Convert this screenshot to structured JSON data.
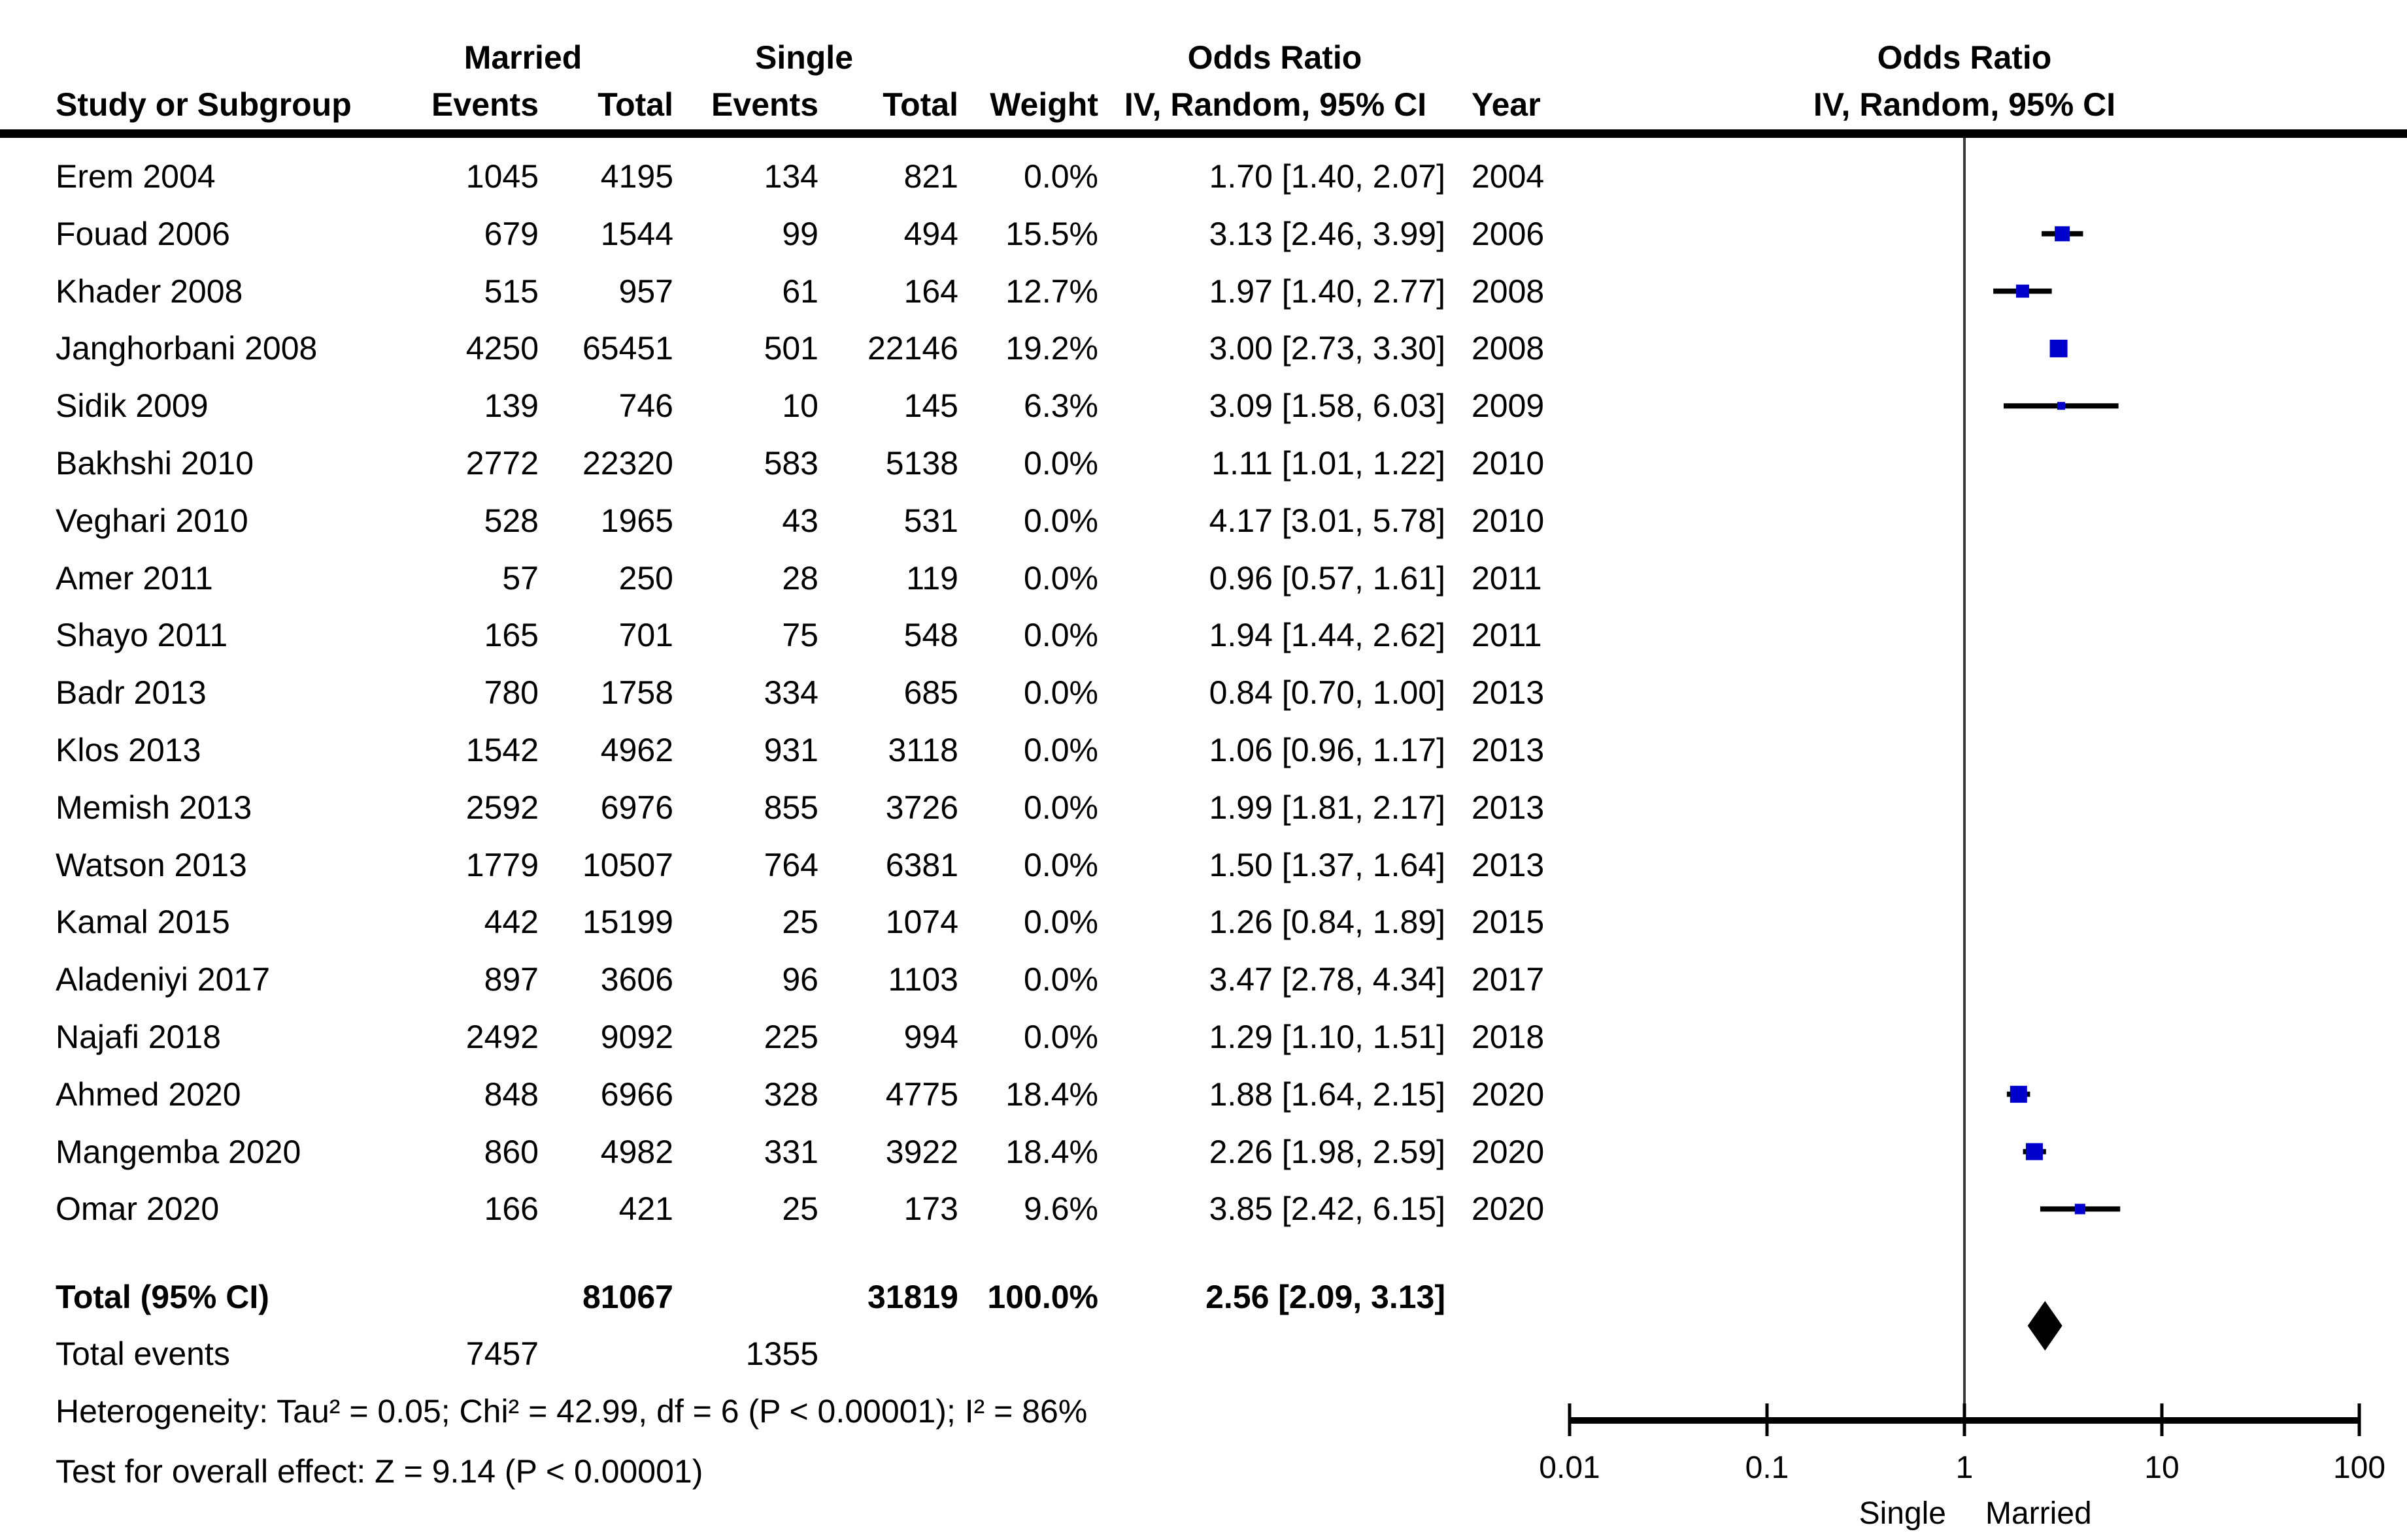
{
  "header": {
    "study": "Study or Subgroup",
    "married": "Married",
    "single": "Single",
    "events": "Events",
    "total": "Total",
    "weight": "Weight",
    "or_line1": "Odds Ratio",
    "or_line2": "IV, Random, 95% CI",
    "year": "Year",
    "plot_or_line1": "Odds Ratio",
    "plot_or_line2": "IV, Random, 95% CI"
  },
  "colors": {
    "marker_blue": "#0000CC",
    "ci_line": "#000000",
    "diamond": "#000000",
    "axis": "#000000",
    "zero_line": "#3a3a3a"
  },
  "chart_data": {
    "type": "scatter",
    "subtype": "forest-plot-meta-analysis",
    "effect_measure": "Odds Ratio",
    "model": "IV, Random, 95% CI",
    "x_scale": "log10",
    "x_ticks": [
      0.01,
      0.1,
      1,
      10,
      100
    ],
    "x_tick_labels": [
      "0.01",
      "0.1",
      "1",
      "10",
      "100"
    ],
    "x_axis_left_label": "Single",
    "x_axis_right_label": "Married",
    "null_line": 1,
    "studies": [
      {
        "study": "Erem 2004",
        "married_events": "1045",
        "married_total": "4195",
        "single_events": "134",
        "single_total": "821",
        "weight": "0.0%",
        "weight_value": 0.0,
        "or": 1.7,
        "ci_low": 1.4,
        "ci_high": 2.07,
        "or_ci_text": "1.70 [1.40, 2.07]",
        "year": "2004",
        "plotted": false
      },
      {
        "study": "Fouad 2006",
        "married_events": "679",
        "married_total": "1544",
        "single_events": "99",
        "single_total": "494",
        "weight": "15.5%",
        "weight_value": 15.5,
        "or": 3.13,
        "ci_low": 2.46,
        "ci_high": 3.99,
        "or_ci_text": "3.13 [2.46, 3.99]",
        "year": "2006",
        "plotted": true
      },
      {
        "study": "Khader 2008",
        "married_events": "515",
        "married_total": "957",
        "single_events": "61",
        "single_total": "164",
        "weight": "12.7%",
        "weight_value": 12.7,
        "or": 1.97,
        "ci_low": 1.4,
        "ci_high": 2.77,
        "or_ci_text": "1.97 [1.40, 2.77]",
        "year": "2008",
        "plotted": true
      },
      {
        "study": "Janghorbani 2008",
        "married_events": "4250",
        "married_total": "65451",
        "single_events": "501",
        "single_total": "22146",
        "weight": "19.2%",
        "weight_value": 19.2,
        "or": 3.0,
        "ci_low": 2.73,
        "ci_high": 3.3,
        "or_ci_text": "3.00 [2.73, 3.30]",
        "year": "2008",
        "plotted": true
      },
      {
        "study": "Sidik 2009",
        "married_events": "139",
        "married_total": "746",
        "single_events": "10",
        "single_total": "145",
        "weight": "6.3%",
        "weight_value": 6.3,
        "or": 3.09,
        "ci_low": 1.58,
        "ci_high": 6.03,
        "or_ci_text": "3.09 [1.58, 6.03]",
        "year": "2009",
        "plotted": true
      },
      {
        "study": "Bakhshi 2010",
        "married_events": "2772",
        "married_total": "22320",
        "single_events": "583",
        "single_total": "5138",
        "weight": "0.0%",
        "weight_value": 0.0,
        "or": 1.11,
        "ci_low": 1.01,
        "ci_high": 1.22,
        "or_ci_text": "1.11 [1.01, 1.22]",
        "year": "2010",
        "plotted": false
      },
      {
        "study": "Veghari 2010",
        "married_events": "528",
        "married_total": "1965",
        "single_events": "43",
        "single_total": "531",
        "weight": "0.0%",
        "weight_value": 0.0,
        "or": 4.17,
        "ci_low": 3.01,
        "ci_high": 5.78,
        "or_ci_text": "4.17 [3.01, 5.78]",
        "year": "2010",
        "plotted": false
      },
      {
        "study": "Amer 2011",
        "married_events": "57",
        "married_total": "250",
        "single_events": "28",
        "single_total": "119",
        "weight": "0.0%",
        "weight_value": 0.0,
        "or": 0.96,
        "ci_low": 0.57,
        "ci_high": 1.61,
        "or_ci_text": "0.96 [0.57, 1.61]",
        "year": "2011",
        "plotted": false
      },
      {
        "study": "Shayo 2011",
        "married_events": "165",
        "married_total": "701",
        "single_events": "75",
        "single_total": "548",
        "weight": "0.0%",
        "weight_value": 0.0,
        "or": 1.94,
        "ci_low": 1.44,
        "ci_high": 2.62,
        "or_ci_text": "1.94 [1.44, 2.62]",
        "year": "2011",
        "plotted": false
      },
      {
        "study": "Badr 2013",
        "married_events": "780",
        "married_total": "1758",
        "single_events": "334",
        "single_total": "685",
        "weight": "0.0%",
        "weight_value": 0.0,
        "or": 0.84,
        "ci_low": 0.7,
        "ci_high": 1.0,
        "or_ci_text": "0.84 [0.70, 1.00]",
        "year": "2013",
        "plotted": false
      },
      {
        "study": "Klos 2013",
        "married_events": "1542",
        "married_total": "4962",
        "single_events": "931",
        "single_total": "3118",
        "weight": "0.0%",
        "weight_value": 0.0,
        "or": 1.06,
        "ci_low": 0.96,
        "ci_high": 1.17,
        "or_ci_text": "1.06 [0.96, 1.17]",
        "year": "2013",
        "plotted": false
      },
      {
        "study": "Memish 2013",
        "married_events": "2592",
        "married_total": "6976",
        "single_events": "855",
        "single_total": "3726",
        "weight": "0.0%",
        "weight_value": 0.0,
        "or": 1.99,
        "ci_low": 1.81,
        "ci_high": 2.17,
        "or_ci_text": "1.99 [1.81, 2.17]",
        "year": "2013",
        "plotted": false
      },
      {
        "study": "Watson 2013",
        "married_events": "1779",
        "married_total": "10507",
        "single_events": "764",
        "single_total": "6381",
        "weight": "0.0%",
        "weight_value": 0.0,
        "or": 1.5,
        "ci_low": 1.37,
        "ci_high": 1.64,
        "or_ci_text": "1.50 [1.37, 1.64]",
        "year": "2013",
        "plotted": false
      },
      {
        "study": "Kamal 2015",
        "married_events": "442",
        "married_total": "15199",
        "single_events": "25",
        "single_total": "1074",
        "weight": "0.0%",
        "weight_value": 0.0,
        "or": 1.26,
        "ci_low": 0.84,
        "ci_high": 1.89,
        "or_ci_text": "1.26 [0.84, 1.89]",
        "year": "2015",
        "plotted": false
      },
      {
        "study": "Aladeniyi 2017",
        "married_events": "897",
        "married_total": "3606",
        "single_events": "96",
        "single_total": "1103",
        "weight": "0.0%",
        "weight_value": 0.0,
        "or": 3.47,
        "ci_low": 2.78,
        "ci_high": 4.34,
        "or_ci_text": "3.47 [2.78, 4.34]",
        "year": "2017",
        "plotted": false
      },
      {
        "study": "Najafi 2018",
        "married_events": "2492",
        "married_total": "9092",
        "single_events": "225",
        "single_total": "994",
        "weight": "0.0%",
        "weight_value": 0.0,
        "or": 1.29,
        "ci_low": 1.1,
        "ci_high": 1.51,
        "or_ci_text": "1.29 [1.10, 1.51]",
        "year": "2018",
        "plotted": false
      },
      {
        "study": "Ahmed 2020",
        "married_events": "848",
        "married_total": "6966",
        "single_events": "328",
        "single_total": "4775",
        "weight": "18.4%",
        "weight_value": 18.4,
        "or": 1.88,
        "ci_low": 1.64,
        "ci_high": 2.15,
        "or_ci_text": "1.88 [1.64, 2.15]",
        "year": "2020",
        "plotted": true
      },
      {
        "study": "Mangemba 2020",
        "married_events": "860",
        "married_total": "4982",
        "single_events": "331",
        "single_total": "3922",
        "weight": "18.4%",
        "weight_value": 18.4,
        "or": 2.26,
        "ci_low": 1.98,
        "ci_high": 2.59,
        "or_ci_text": "2.26 [1.98, 2.59]",
        "year": "2020",
        "plotted": true
      },
      {
        "study": "Omar 2020",
        "married_events": "166",
        "married_total": "421",
        "single_events": "25",
        "single_total": "173",
        "weight": "9.6%",
        "weight_value": 9.6,
        "or": 3.85,
        "ci_low": 2.42,
        "ci_high": 6.15,
        "or_ci_text": "3.85 [2.42, 6.15]",
        "year": "2020",
        "plotted": true
      }
    ],
    "total": {
      "label": "Total (95% CI)",
      "married_total": "81067",
      "single_total": "31819",
      "weight": "100.0%",
      "or": 2.56,
      "ci_low": 2.09,
      "ci_high": 3.13,
      "or_ci_text": "2.56 [2.09, 3.13]"
    },
    "total_events": {
      "label": "Total events",
      "married": "7457",
      "single": "1355"
    },
    "footnotes": {
      "heterogeneity": "Heterogeneity: Tau² = 0.05; Chi² = 42.99, df = 6 (P < 0.00001); I² = 86%",
      "overall_effect": "Test for overall effect: Z = 9.14 (P < 0.00001)"
    }
  }
}
